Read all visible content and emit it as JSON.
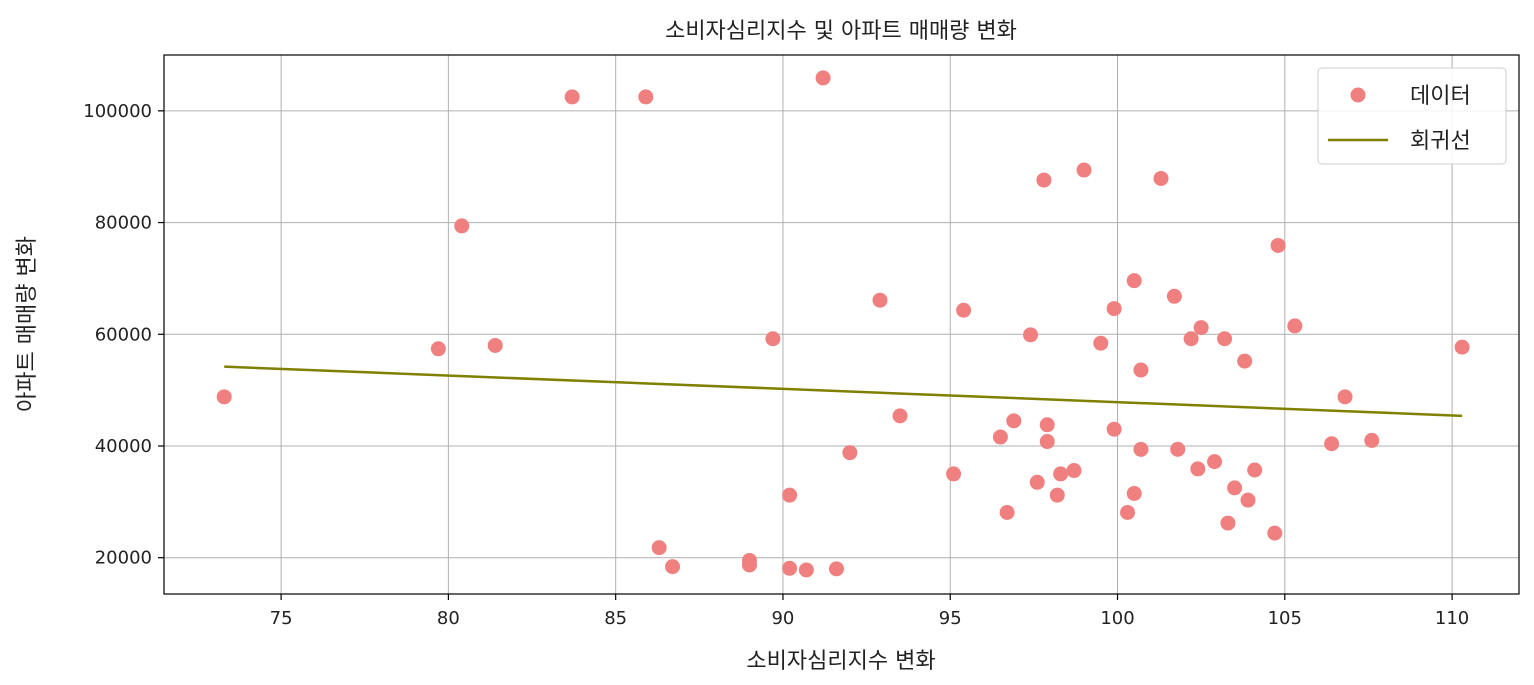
{
  "chart_data": {
    "type": "scatter",
    "title": "소비자심리지수 및 아파트 매매량 변화",
    "xlabel": "소비자심리지수 변화",
    "ylabel": "아파트 매매량 변화",
    "xlim": [
      71.5,
      112
    ],
    "ylim": [
      13500,
      110000
    ],
    "xticks": [
      75,
      80,
      85,
      90,
      95,
      100,
      105,
      110
    ],
    "yticks": [
      20000,
      40000,
      60000,
      80000,
      100000
    ],
    "grid": true,
    "legend_position": "top-right",
    "colors": {
      "points": "#f08080",
      "line": "#808000",
      "grid": "#b0b0b0"
    },
    "series": [
      {
        "name": "데이터",
        "kind": "scatter",
        "points": [
          [
            73.3,
            48800
          ],
          [
            79.7,
            57400
          ],
          [
            80.4,
            79400
          ],
          [
            81.4,
            58000
          ],
          [
            83.7,
            102500
          ],
          [
            85.9,
            102500
          ],
          [
            86.3,
            21800
          ],
          [
            86.7,
            18400
          ],
          [
            89.0,
            19500
          ],
          [
            89.0,
            18700
          ],
          [
            89.7,
            59200
          ],
          [
            90.2,
            31200
          ],
          [
            90.2,
            18100
          ],
          [
            90.7,
            17800
          ],
          [
            91.2,
            105900
          ],
          [
            91.6,
            18000
          ],
          [
            92.0,
            38800
          ],
          [
            92.9,
            66100
          ],
          [
            93.5,
            45400
          ],
          [
            95.1,
            35000
          ],
          [
            95.4,
            64300
          ],
          [
            96.5,
            41600
          ],
          [
            96.7,
            28100
          ],
          [
            96.9,
            44500
          ],
          [
            97.4,
            59900
          ],
          [
            97.6,
            33500
          ],
          [
            97.8,
            87600
          ],
          [
            97.9,
            43800
          ],
          [
            97.9,
            40800
          ],
          [
            98.2,
            31200
          ],
          [
            98.3,
            35000
          ],
          [
            98.7,
            35600
          ],
          [
            99.0,
            89400
          ],
          [
            99.5,
            58400
          ],
          [
            99.9,
            64600
          ],
          [
            99.9,
            43000
          ],
          [
            100.3,
            28100
          ],
          [
            100.5,
            69600
          ],
          [
            100.5,
            31500
          ],
          [
            100.7,
            53600
          ],
          [
            100.7,
            39400
          ],
          [
            101.3,
            87900
          ],
          [
            101.7,
            66800
          ],
          [
            101.8,
            39400
          ],
          [
            102.2,
            59200
          ],
          [
            102.4,
            35900
          ],
          [
            102.5,
            61200
          ],
          [
            102.9,
            37200
          ],
          [
            103.2,
            59200
          ],
          [
            103.3,
            26200
          ],
          [
            103.5,
            32500
          ],
          [
            103.8,
            55200
          ],
          [
            103.9,
            30300
          ],
          [
            104.1,
            35700
          ],
          [
            104.7,
            24400
          ],
          [
            104.8,
            75900
          ],
          [
            105.3,
            61500
          ],
          [
            106.4,
            40400
          ],
          [
            106.8,
            48800
          ],
          [
            107.6,
            41000
          ],
          [
            110.3,
            57700
          ]
        ]
      },
      {
        "name": "회귀선",
        "kind": "line",
        "points": [
          [
            73.3,
            54200
          ],
          [
            110.3,
            45400
          ]
        ]
      }
    ]
  }
}
